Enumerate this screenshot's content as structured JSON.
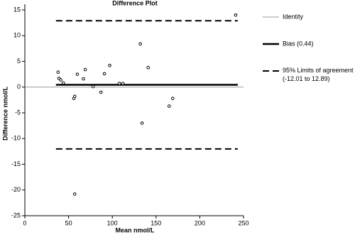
{
  "chart_data": {
    "type": "scatter",
    "title": "Difference Plot",
    "x_label": "Mean nmol/L",
    "y_label": "Difference nmol/L",
    "x": [
      38,
      39,
      41,
      44,
      56,
      57,
      57,
      60,
      67,
      69,
      78,
      87,
      91,
      97,
      108,
      112,
      132,
      134,
      141,
      165,
      169,
      241
    ],
    "values": [
      2.9,
      1.7,
      1.4,
      0.8,
      -2.2,
      -1.8,
      -20.8,
      2.5,
      1.6,
      3.4,
      0.1,
      -1.0,
      2.6,
      4.2,
      0.7,
      0.7,
      8.4,
      -7.0,
      3.8,
      -3.7,
      -2.2,
      14.0
    ],
    "color": "#000000",
    "xlim": [
      0,
      250
    ],
    "xticks": [
      0,
      50,
      100,
      150,
      200,
      250
    ],
    "ylim": [
      -25,
      15
    ],
    "yticks": [
      -25,
      -20,
      -15,
      -10,
      -5,
      0,
      5,
      10,
      15
    ],
    "reference_lines": [
      {
        "name": "Identity",
        "values": [
          0
        ],
        "color": "#999999",
        "style": "solid"
      },
      {
        "name": "Bias (0.44)",
        "values": [
          0.44
        ],
        "color": "#000000",
        "style": "thick"
      },
      {
        "name": "95% Limits of agreement (-12.01 to 12.89)",
        "values": [
          -12.01,
          12.89
        ],
        "color": "#000000",
        "style": "dashed"
      }
    ]
  }
}
